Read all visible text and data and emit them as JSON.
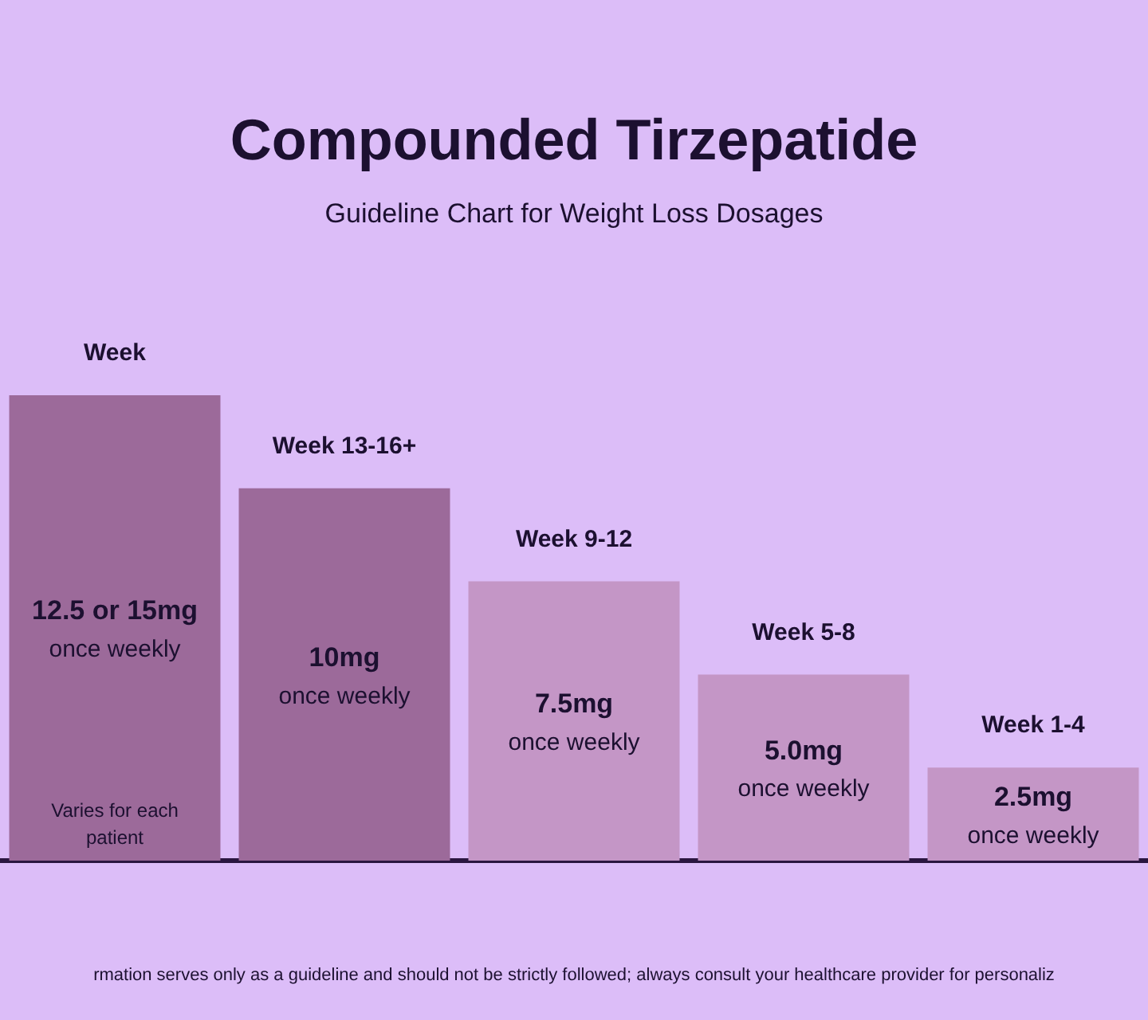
{
  "chart_data": {
    "type": "bar",
    "title": "Compounded Tirzepatide",
    "subtitle": "Guideline Chart for Weight Loss Dosages",
    "categories": [
      "Week",
      "Week 13-16+",
      "Week 9-12",
      "Week 5-8",
      "Week 1-4"
    ],
    "values": [
      12.5,
      10,
      7.5,
      5.0,
      2.5
    ],
    "colors": [
      "#9c6a9a",
      "#9c6a9a",
      "#c496c6",
      "#c496c6",
      "#c496c6"
    ],
    "value_labels": [
      "12.5 or 15mg",
      "10mg",
      "7.5mg",
      "5.0mg",
      "2.5mg"
    ],
    "annotations": [
      "once weekly",
      "once weekly",
      "once weekly",
      "once weekly",
      "once weekly",
      "Varies for each patient",
      "rmation serves only as a guideline and should not be strictly followed; always consult your healthcare provider for personaliz"
    ],
    "tick_labels": "x",
    "legend": false,
    "grid": false
  }
}
